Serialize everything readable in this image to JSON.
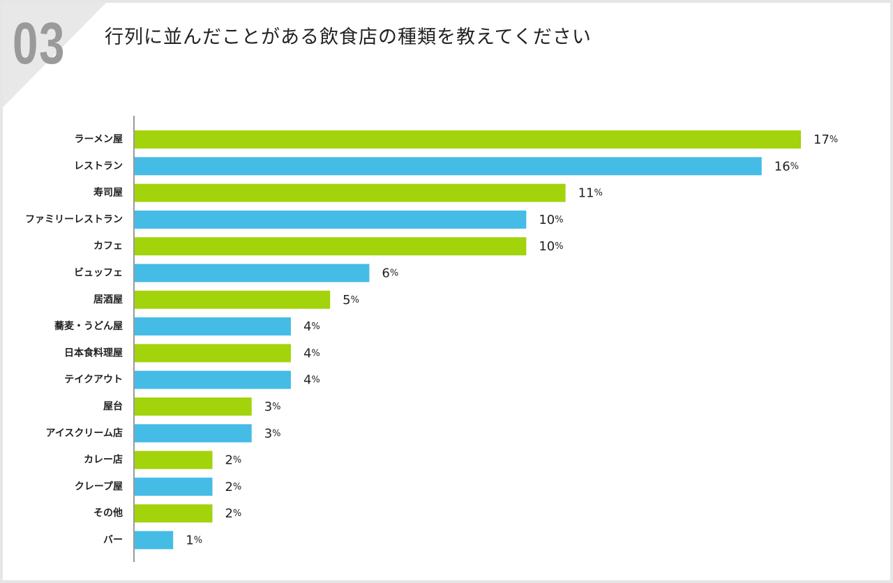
{
  "question_number": "03",
  "title": "行列に並んだことがある飲食店の種類を教えてください",
  "colors": {
    "odd": "#a2d30b",
    "even": "#45bce6",
    "corner": "#e8e8e8",
    "number": "#9a9a9a"
  },
  "chart_data": {
    "type": "bar",
    "orientation": "horizontal",
    "title": "行列に並んだことがある飲食店の種類を教えてください",
    "unit": "%",
    "categories": [
      "ラーメン屋",
      "レストラン",
      "寿司屋",
      "ファミリーレストラン",
      "カフェ",
      "ビュッフェ",
      "居酒屋",
      "蕎麦・うどん屋",
      "日本食料理屋",
      "テイクアウト",
      "屋台",
      "アイスクリーム店",
      "カレー店",
      "クレープ屋",
      "その他",
      "バー"
    ],
    "values": [
      17,
      16,
      11,
      10,
      10,
      6,
      5,
      4,
      4,
      4,
      3,
      3,
      2,
      2,
      2,
      1
    ],
    "xlim": [
      0,
      17
    ],
    "grid": false,
    "legend": "none"
  }
}
